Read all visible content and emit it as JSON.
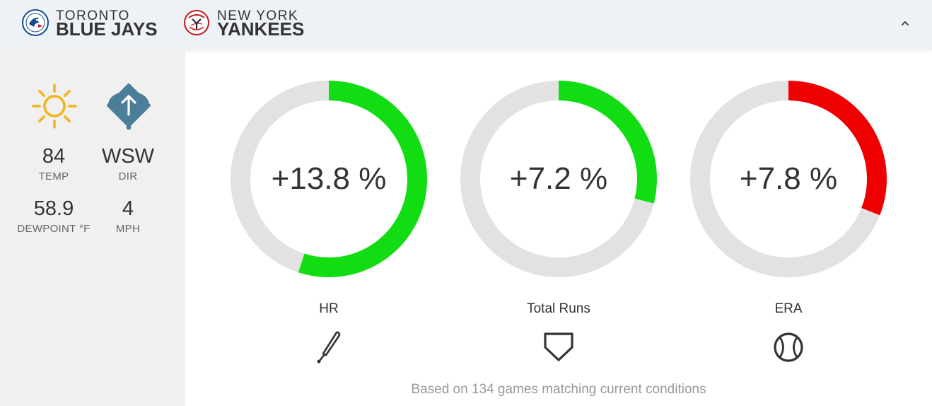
{
  "header": {
    "away": {
      "city": "TORONTO",
      "name": "BLUE JAYS",
      "logo_icon": "blue-jays-logo",
      "accent": "#134a8e"
    },
    "home": {
      "city": "NEW YORK",
      "name": "YANKEES",
      "logo_icon": "yankees-logo",
      "accent": "#c4161c"
    },
    "collapse_icon": "chevron-up-icon"
  },
  "weather": {
    "condition_icon": "sun-icon",
    "wind_icon": "wind-direction-icon",
    "temp": {
      "value": "84",
      "label": "TEMP"
    },
    "direction": {
      "value": "WSW",
      "label": "DIR"
    },
    "dewpoint": {
      "value": "58.9",
      "label": "DEWPOINT °F"
    },
    "speed": {
      "value": "4",
      "label": "MPH"
    }
  },
  "metrics": [
    {
      "label": "HR",
      "value_text": "+13.8 %",
      "fill_fraction": 0.55,
      "color": "#12dd12",
      "icon": "bat-icon"
    },
    {
      "label": "Total Runs",
      "value_text": "+7.2 %",
      "fill_fraction": 0.29,
      "color": "#12dd12",
      "icon": "home-plate-icon"
    },
    {
      "label": "ERA",
      "value_text": "+7.8 %",
      "fill_fraction": 0.31,
      "color": "#ee0000",
      "icon": "baseball-icon"
    }
  ],
  "footnote": "Based on 134 games matching current conditions",
  "colors": {
    "track": "#e2e2e2",
    "sun": "#f5b21a",
    "wind": "#4c7d99"
  }
}
